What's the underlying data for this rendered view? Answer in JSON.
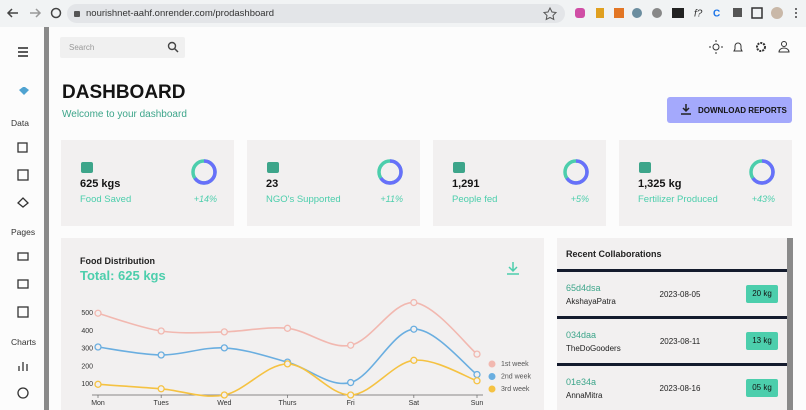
{
  "browser": {
    "url": "nourishnet-aahf.onrender.com/prodashboard"
  },
  "sidebar": {
    "sections": [
      "Data",
      "Pages",
      "Charts"
    ]
  },
  "search": {
    "placeholder": "Search"
  },
  "header": {
    "title": "DASHBOARD",
    "subtitle": "Welcome to your dashboard",
    "button": "DOWNLOAD REPORTS"
  },
  "stats": [
    {
      "value": "625 kgs",
      "label": "Food Saved",
      "change": "+14%"
    },
    {
      "value": "23",
      "label": "NGO's Supported",
      "change": "+11%"
    },
    {
      "value": "1,291",
      "label": "People fed",
      "change": "+5%"
    },
    {
      "value": "1,325 kg",
      "label": "Fertilizer Produced",
      "change": "+43%"
    }
  ],
  "chart_data": {
    "type": "line",
    "title": "Food Distribution",
    "subtitle": "Total: 625 kgs",
    "categories": [
      "Mon",
      "Tues",
      "Wed",
      "Thurs",
      "Fri",
      "Sat",
      "Sun"
    ],
    "series": [
      {
        "name": "1st week",
        "color": "#f2b8b0",
        "values": [
          500,
          400,
          395,
          415,
          320,
          560,
          270
        ]
      },
      {
        "name": "2nd week",
        "color": "#6aaee0",
        "values": [
          310,
          265,
          305,
          225,
          110,
          410,
          155
        ]
      },
      {
        "name": "3rd week",
        "color": "#f5c242",
        "values": [
          100,
          75,
          40,
          215,
          40,
          235,
          120
        ]
      }
    ],
    "ylim": [
      40,
      580
    ],
    "yticks": [
      100,
      200,
      300,
      400,
      500
    ]
  },
  "collaborations": {
    "title": "Recent Collaborations",
    "rows": [
      {
        "id": "65d4dsa",
        "name": "AkshayaPatra",
        "date": "2023-08-05",
        "amount": "20 kg"
      },
      {
        "id": "034daa",
        "name": "TheDoGooders",
        "date": "2023-08-11",
        "amount": "13 kg"
      },
      {
        "id": "01e34a",
        "name": "AnnaMitra",
        "date": "2023-08-16",
        "amount": "05 kg"
      }
    ]
  }
}
